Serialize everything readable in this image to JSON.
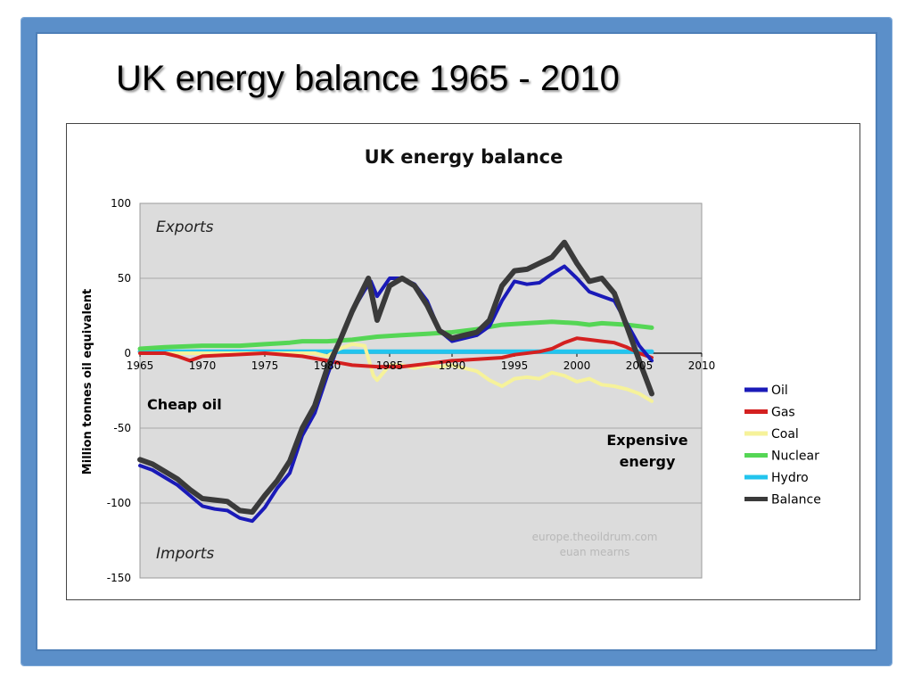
{
  "slide": {
    "title": "UK energy balance 1965 - 2010"
  },
  "colors": {
    "frame": "#5b8fc9",
    "plot_background": "#dcdcdc",
    "oil": "#1a1ab8",
    "gas": "#d42020",
    "coal": "#f6f29a",
    "nuclear": "#55d655",
    "hydro": "#22c4ee",
    "balance": "#3a3a3a"
  },
  "chart_data": {
    "type": "line",
    "title": "UK energy balance",
    "xlabel": "",
    "ylabel": "Million tonnes oil equivalent",
    "xlim": [
      1965,
      2010
    ],
    "ylim": [
      -150,
      100
    ],
    "x_ticks": [
      1965,
      1970,
      1975,
      1980,
      1985,
      1990,
      1995,
      2000,
      2005,
      2010
    ],
    "y_ticks": [
      100,
      50,
      0,
      -50,
      -100,
      -150
    ],
    "grid": true,
    "legend_position": "right",
    "annotations": {
      "exports": "Exports",
      "imports": "Imports",
      "cheap_oil": "Cheap oil",
      "expensive_line1": "Expensive",
      "expensive_line2": "energy",
      "credit_line1": "europe.theoildrum.com",
      "credit_line2": "euan mearns"
    },
    "series": [
      {
        "name": "Oil",
        "color_key": "oil",
        "points": [
          [
            1965,
            -75
          ],
          [
            1966,
            -78
          ],
          [
            1967,
            -83
          ],
          [
            1968,
            -88
          ],
          [
            1969,
            -95
          ],
          [
            1970,
            -102
          ],
          [
            1971,
            -104
          ],
          [
            1972,
            -105
          ],
          [
            1973,
            -110
          ],
          [
            1974,
            -112
          ],
          [
            1975,
            -103
          ],
          [
            1976,
            -90
          ],
          [
            1977,
            -80
          ],
          [
            1978,
            -55
          ],
          [
            1979,
            -40
          ],
          [
            1980,
            -15
          ],
          [
            1981,
            8
          ],
          [
            1982,
            28
          ],
          [
            1983,
            42
          ],
          [
            1983.5,
            48
          ],
          [
            1984,
            38
          ],
          [
            1985,
            50
          ],
          [
            1986,
            50
          ],
          [
            1987,
            46
          ],
          [
            1988,
            35
          ],
          [
            1989,
            15
          ],
          [
            1990,
            8
          ],
          [
            1991,
            10
          ],
          [
            1992,
            12
          ],
          [
            1993,
            18
          ],
          [
            1994,
            35
          ],
          [
            1995,
            48
          ],
          [
            1996,
            46
          ],
          [
            1997,
            47
          ],
          [
            1998,
            53
          ],
          [
            1999,
            58
          ],
          [
            2000,
            50
          ],
          [
            2001,
            41
          ],
          [
            2002,
            38
          ],
          [
            2003,
            35
          ],
          [
            2004,
            20
          ],
          [
            2005,
            5
          ],
          [
            2006,
            -5
          ]
        ]
      },
      {
        "name": "Gas",
        "color_key": "gas",
        "points": [
          [
            1965,
            0
          ],
          [
            1967,
            0
          ],
          [
            1968,
            -2
          ],
          [
            1969,
            -5
          ],
          [
            1970,
            -2
          ],
          [
            1975,
            0
          ],
          [
            1978,
            -2
          ],
          [
            1980,
            -5
          ],
          [
            1982,
            -8
          ],
          [
            1984,
            -9
          ],
          [
            1986,
            -9
          ],
          [
            1988,
            -7
          ],
          [
            1990,
            -5
          ],
          [
            1992,
            -4
          ],
          [
            1994,
            -3
          ],
          [
            1995,
            -1
          ],
          [
            1997,
            1
          ],
          [
            1998,
            3
          ],
          [
            1999,
            7
          ],
          [
            2000,
            10
          ],
          [
            2001,
            9
          ],
          [
            2002,
            8
          ],
          [
            2003,
            7
          ],
          [
            2004,
            4
          ],
          [
            2005,
            0
          ],
          [
            2006,
            -3
          ]
        ]
      },
      {
        "name": "Coal",
        "color_key": "coal",
        "points": [
          [
            1965,
            0
          ],
          [
            1975,
            0
          ],
          [
            1979,
            0
          ],
          [
            1980,
            -2
          ],
          [
            1981,
            3
          ],
          [
            1982,
            6
          ],
          [
            1983,
            5
          ],
          [
            1983.7,
            -15
          ],
          [
            1984,
            -18
          ],
          [
            1985,
            -8
          ],
          [
            1986,
            -8
          ],
          [
            1987,
            -10
          ],
          [
            1988,
            -8
          ],
          [
            1989,
            -9
          ],
          [
            1990,
            -8
          ],
          [
            1991,
            -10
          ],
          [
            1992,
            -12
          ],
          [
            1993,
            -18
          ],
          [
            1994,
            -22
          ],
          [
            1995,
            -17
          ],
          [
            1996,
            -16
          ],
          [
            1997,
            -17
          ],
          [
            1998,
            -13
          ],
          [
            1999,
            -15
          ],
          [
            2000,
            -19
          ],
          [
            2001,
            -17
          ],
          [
            2002,
            -21
          ],
          [
            2003,
            -22
          ],
          [
            2004,
            -24
          ],
          [
            2005,
            -27
          ],
          [
            2006,
            -32
          ]
        ]
      },
      {
        "name": "Nuclear",
        "color_key": "nuclear",
        "points": [
          [
            1965,
            3
          ],
          [
            1967,
            4
          ],
          [
            1970,
            5
          ],
          [
            1973,
            5
          ],
          [
            1975,
            6
          ],
          [
            1977,
            7
          ],
          [
            1978,
            8
          ],
          [
            1980,
            8
          ],
          [
            1982,
            9
          ],
          [
            1984,
            11
          ],
          [
            1986,
            12
          ],
          [
            1988,
            13
          ],
          [
            1990,
            14
          ],
          [
            1992,
            16
          ],
          [
            1994,
            19
          ],
          [
            1996,
            20
          ],
          [
            1998,
            21
          ],
          [
            2000,
            20
          ],
          [
            2001,
            19
          ],
          [
            2002,
            20
          ],
          [
            2004,
            19
          ],
          [
            2006,
            17
          ]
        ]
      },
      {
        "name": "Hydro",
        "color_key": "hydro",
        "points": [
          [
            1965,
            1
          ],
          [
            1980,
            1
          ],
          [
            1990,
            1
          ],
          [
            2000,
            1
          ],
          [
            2006,
            1
          ]
        ]
      },
      {
        "name": "Balance",
        "color_key": "balance",
        "points": [
          [
            1965,
            -71
          ],
          [
            1966,
            -74
          ],
          [
            1967,
            -79
          ],
          [
            1968,
            -84
          ],
          [
            1969,
            -91
          ],
          [
            1970,
            -97
          ],
          [
            1971,
            -98
          ],
          [
            1972,
            -99
          ],
          [
            1973,
            -105
          ],
          [
            1974,
            -106
          ],
          [
            1975,
            -95
          ],
          [
            1976,
            -85
          ],
          [
            1977,
            -72
          ],
          [
            1978,
            -50
          ],
          [
            1979,
            -35
          ],
          [
            1980,
            -10
          ],
          [
            1981,
            8
          ],
          [
            1982,
            28
          ],
          [
            1983,
            45
          ],
          [
            1983.3,
            50
          ],
          [
            1984,
            22
          ],
          [
            1985,
            45
          ],
          [
            1986,
            50
          ],
          [
            1987,
            45
          ],
          [
            1988,
            32
          ],
          [
            1989,
            15
          ],
          [
            1990,
            10
          ],
          [
            1991,
            12
          ],
          [
            1992,
            14
          ],
          [
            1993,
            22
          ],
          [
            1994,
            45
          ],
          [
            1995,
            55
          ],
          [
            1996,
            56
          ],
          [
            1997,
            60
          ],
          [
            1998,
            64
          ],
          [
            1999,
            74
          ],
          [
            2000,
            60
          ],
          [
            2001,
            48
          ],
          [
            2002,
            50
          ],
          [
            2003,
            40
          ],
          [
            2004,
            18
          ],
          [
            2005,
            -5
          ],
          [
            2006,
            -27
          ]
        ]
      }
    ]
  }
}
